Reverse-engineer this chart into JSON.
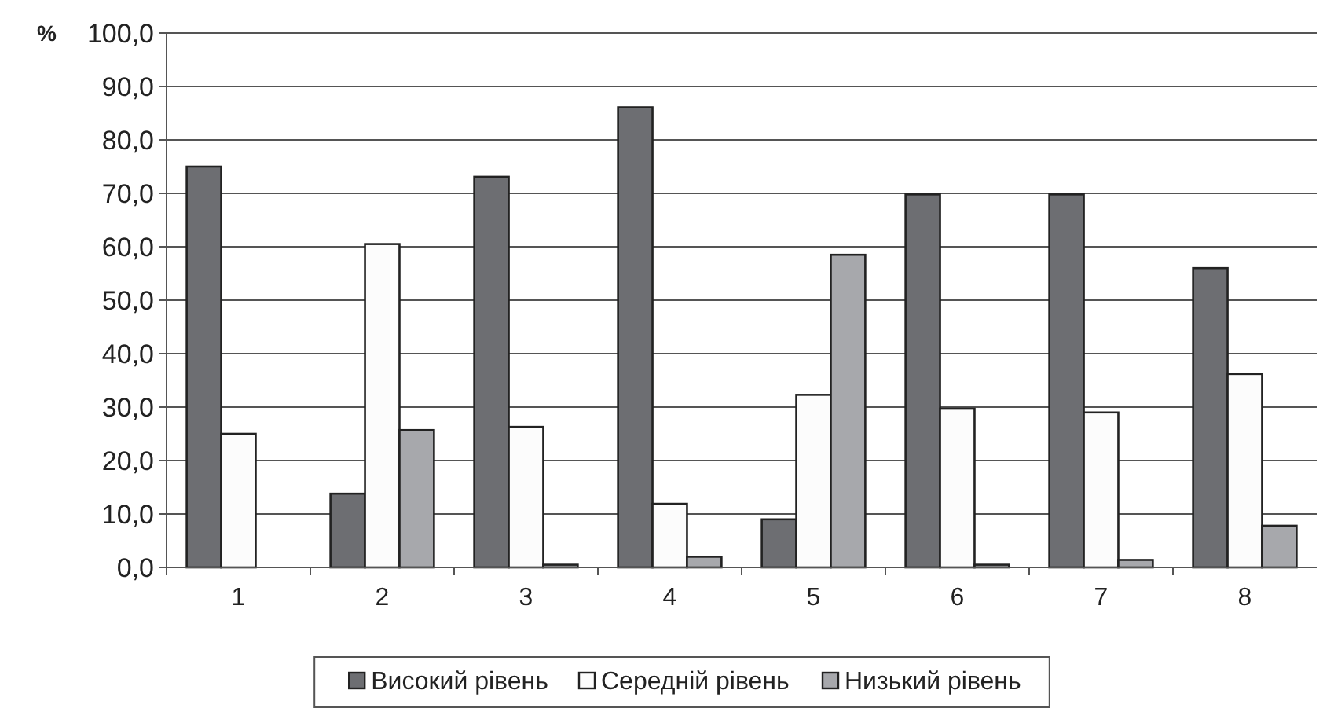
{
  "chart_data": {
    "type": "bar",
    "ylabel": "%",
    "categories": [
      "1",
      "2",
      "3",
      "4",
      "5",
      "6",
      "7",
      "8"
    ],
    "series": [
      {
        "name": "Високий рівень",
        "color": "#6d6e72",
        "values": [
          75.0,
          13.8,
          73.1,
          86.1,
          9.0,
          69.8,
          69.8,
          56.0
        ]
      },
      {
        "name": "Середній рівень",
        "color": "#fcfcfc",
        "values": [
          25.0,
          60.5,
          26.3,
          11.9,
          32.3,
          29.7,
          29.0,
          36.2
        ]
      },
      {
        "name": "Низький рівень",
        "color": "#a7a8ac",
        "values": [
          0,
          25.7,
          0.5,
          2.0,
          58.5,
          0.5,
          1.4,
          7.8
        ]
      }
    ],
    "ylim": [
      0,
      100
    ],
    "yticks": [
      {
        "value": 0,
        "label": "0,0"
      },
      {
        "value": 10,
        "label": "10,0"
      },
      {
        "value": 20,
        "label": "20,0"
      },
      {
        "value": 30,
        "label": "30,0"
      },
      {
        "value": 40,
        "label": "40,0"
      },
      {
        "value": 50,
        "label": "50,0"
      },
      {
        "value": 60,
        "label": "60,0"
      },
      {
        "value": 70,
        "label": "70,0"
      },
      {
        "value": 80,
        "label": "80,0"
      },
      {
        "value": 90,
        "label": "90,0"
      },
      {
        "value": 100,
        "label": "100,0"
      }
    ],
    "grid": "y",
    "legend": "bottom"
  }
}
